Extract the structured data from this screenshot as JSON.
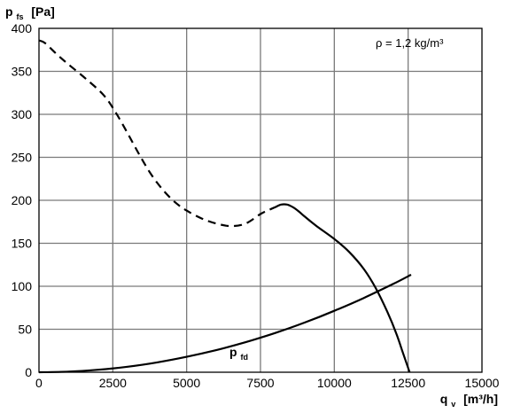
{
  "chart_data": {
    "type": "line",
    "ylabel": {
      "main": "p",
      "sub": "fs",
      "unit": "[Pa]"
    },
    "xlabel": {
      "main": "q",
      "sub": "v",
      "unit": "[m³/h]"
    },
    "xlim": [
      0,
      15000
    ],
    "ylim": [
      0,
      400
    ],
    "x_ticks": [
      0,
      2500,
      5000,
      7500,
      10000,
      12500,
      15000
    ],
    "y_ticks": [
      0,
      50,
      100,
      150,
      200,
      250,
      300,
      350,
      400
    ],
    "x_tick_labels": [
      "0",
      "2500",
      "5000",
      "7500",
      "10000",
      "12500",
      "15000"
    ],
    "y_tick_labels": [
      "0",
      "50",
      "100",
      "150",
      "200",
      "250",
      "300",
      "350",
      "400"
    ],
    "grid": true,
    "annotation": "ρ = 1,2 kg/m³",
    "series": [
      {
        "style": "dashed",
        "x": [
          0,
          200,
          600,
          1000,
          1600,
          2200,
          2600,
          3000,
          3400,
          3800,
          4200,
          4600,
          5000,
          5500,
          6000,
          6500,
          7000,
          7500,
          7800,
          8000
        ],
        "y": [
          386,
          383,
          370,
          358,
          341,
          322,
          302,
          278,
          253,
          230,
          212,
          198,
          188,
          179,
          173,
          170,
          173,
          184,
          189,
          192
        ]
      },
      {
        "style": "solid",
        "x": [
          8000,
          8200,
          8400,
          8600,
          8800,
          9000,
          9400,
          10000,
          10500,
          11000,
          11400,
          11800,
          12100,
          12300,
          12450,
          12550
        ],
        "y": [
          192,
          195,
          195,
          192,
          187,
          181,
          170,
          155,
          140,
          120,
          98,
          70,
          45,
          25,
          10,
          0
        ]
      },
      {
        "name": "p",
        "name_sub": "fd",
        "style": "solid",
        "x": [
          0,
          1000,
          2000,
          3000,
          4000,
          5000,
          6000,
          7000,
          8000,
          9000,
          10000,
          11000,
          12000,
          12600
        ],
        "y": [
          0,
          0.7,
          2.9,
          6.4,
          11.4,
          17.9,
          25.7,
          35.0,
          45.7,
          57.8,
          71.4,
          86.4,
          102.8,
          113.4
        ]
      }
    ]
  }
}
